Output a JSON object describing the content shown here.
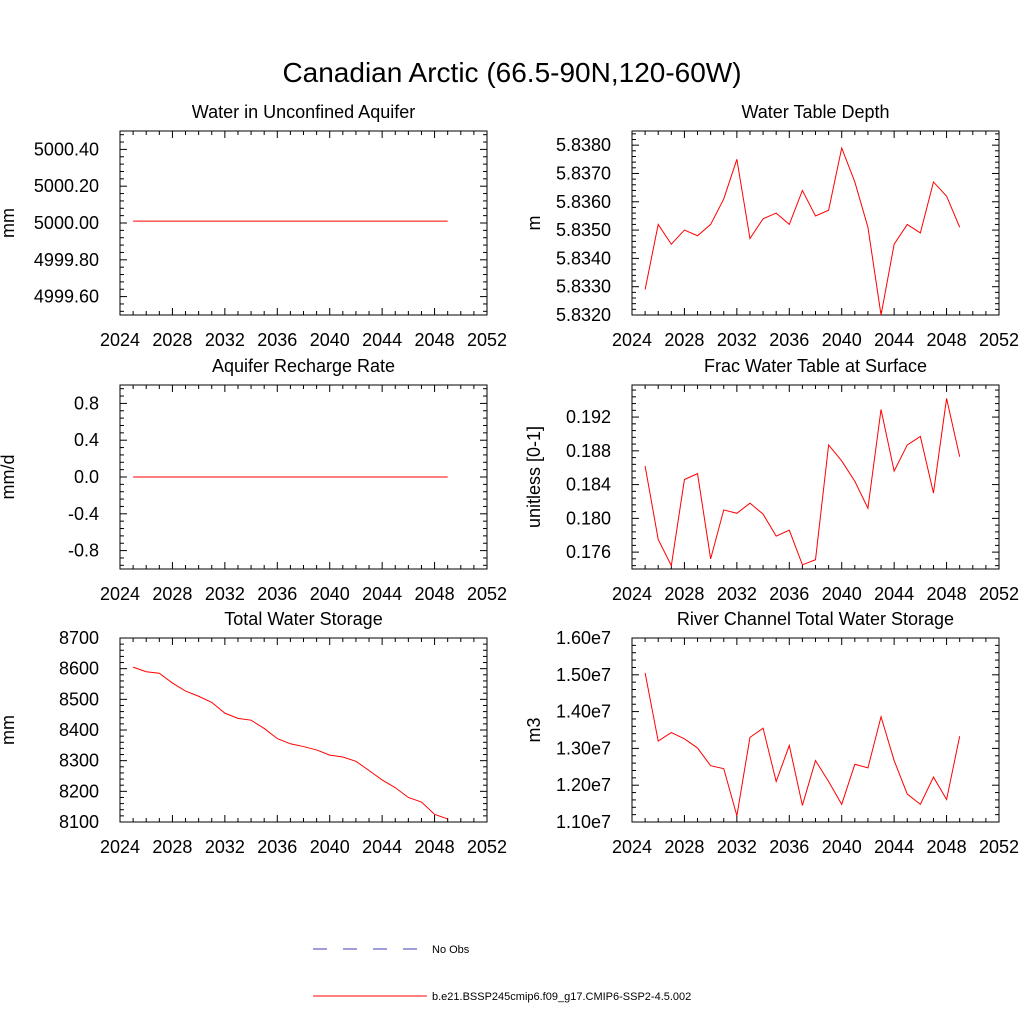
{
  "figure": {
    "title": "Canadian Arctic (66.5-90N,120-60W)"
  },
  "legend": {
    "obs_label": "No Obs",
    "obs_color": "#3d3db5",
    "model_label": "b.e21.BSSP245cmip6.f09_g17.CMIP6-SSP2-4.5.002",
    "model_color": "#ff0000"
  },
  "chart_data": [
    {
      "type": "line",
      "title": "Water in Unconfined Aquifer",
      "ylabel": "mm",
      "xlim": [
        2024,
        2052
      ],
      "ylim": [
        4999.5,
        5000.5
      ],
      "x_ticks": [
        "2024",
        "2028",
        "2032",
        "2036",
        "2040",
        "2044",
        "2048",
        "2052"
      ],
      "y_ticks": [
        {
          "value": 4999.6,
          "label": "4999.60"
        },
        {
          "value": 4999.8,
          "label": "4999.80"
        },
        {
          "value": 5000.0,
          "label": "5000.00"
        },
        {
          "value": 5000.2,
          "label": "5000.20"
        },
        {
          "value": 5000.4,
          "label": "5000.40"
        }
      ],
      "x": [
        2025,
        2026,
        2027,
        2028,
        2029,
        2030,
        2031,
        2032,
        2033,
        2034,
        2035,
        2036,
        2037,
        2038,
        2039,
        2040,
        2041,
        2042,
        2043,
        2044,
        2045,
        2046,
        2047,
        2048,
        2049
      ],
      "series": [
        {
          "color": "#ff0000",
          "values": [
            5000.01,
            5000.01,
            5000.01,
            5000.01,
            5000.01,
            5000.01,
            5000.01,
            5000.01,
            5000.01,
            5000.01,
            5000.01,
            5000.01,
            5000.01,
            5000.01,
            5000.01,
            5000.01,
            5000.01,
            5000.01,
            5000.01,
            5000.01,
            5000.01,
            5000.01,
            5000.01,
            5000.01,
            5000.01
          ]
        }
      ]
    },
    {
      "type": "line",
      "title": "Water Table Depth",
      "ylabel": "m",
      "xlim": [
        2024,
        2052
      ],
      "ylim": [
        5.832,
        5.8385
      ],
      "x_ticks": [
        "2024",
        "2028",
        "2032",
        "2036",
        "2040",
        "2044",
        "2048",
        "2052"
      ],
      "y_ticks": [
        {
          "value": 5.832,
          "label": "5.8320"
        },
        {
          "value": 5.833,
          "label": "5.8330"
        },
        {
          "value": 5.834,
          "label": "5.8340"
        },
        {
          "value": 5.835,
          "label": "5.8350"
        },
        {
          "value": 5.836,
          "label": "5.8360"
        },
        {
          "value": 5.837,
          "label": "5.8370"
        },
        {
          "value": 5.838,
          "label": "5.8380"
        }
      ],
      "x": [
        2025,
        2026,
        2027,
        2028,
        2029,
        2030,
        2031,
        2032,
        2033,
        2034,
        2035,
        2036,
        2037,
        2038,
        2039,
        2040,
        2041,
        2042,
        2043,
        2044,
        2045,
        2046,
        2047,
        2048,
        2049
      ],
      "series": [
        {
          "color": "#ff0000",
          "values": [
            5.8329,
            5.8352,
            5.8345,
            5.835,
            5.8348,
            5.8352,
            5.8361,
            5.8375,
            5.8347,
            5.8354,
            5.8356,
            5.8352,
            5.8364,
            5.8355,
            5.8357,
            5.8379,
            5.8367,
            5.8351,
            5.832,
            5.8345,
            5.8352,
            5.8349,
            5.8367,
            5.8362,
            5.8351
          ]
        }
      ]
    },
    {
      "type": "line",
      "title": "Aquifer Recharge Rate",
      "ylabel": "mm/d",
      "xlim": [
        2024,
        2052
      ],
      "ylim": [
        -1.0,
        1.0
      ],
      "x_ticks": [
        "2024",
        "2028",
        "2032",
        "2036",
        "2040",
        "2044",
        "2048",
        "2052"
      ],
      "y_ticks": [
        {
          "value": -0.8,
          "label": "-0.8"
        },
        {
          "value": -0.4,
          "label": "-0.4"
        },
        {
          "value": 0.0,
          "label": "0.0"
        },
        {
          "value": 0.4,
          "label": "0.4"
        },
        {
          "value": 0.8,
          "label": "0.8"
        }
      ],
      "x": [
        2025,
        2026,
        2027,
        2028,
        2029,
        2030,
        2031,
        2032,
        2033,
        2034,
        2035,
        2036,
        2037,
        2038,
        2039,
        2040,
        2041,
        2042,
        2043,
        2044,
        2045,
        2046,
        2047,
        2048,
        2049
      ],
      "series": [
        {
          "color": "#ff0000",
          "values": [
            0,
            0,
            0,
            0,
            0,
            0,
            0,
            0,
            0,
            0,
            0,
            0,
            0,
            0,
            0,
            0,
            0,
            0,
            0,
            0,
            0,
            0,
            0,
            0,
            0
          ]
        }
      ]
    },
    {
      "type": "line",
      "title": "Frac Water Table at Surface",
      "ylabel": "unitless [0-1]",
      "xlim": [
        2024,
        2052
      ],
      "ylim": [
        0.174,
        0.1958
      ],
      "x_ticks": [
        "2024",
        "2028",
        "2032",
        "2036",
        "2040",
        "2044",
        "2048",
        "2052"
      ],
      "y_ticks": [
        {
          "value": 0.176,
          "label": "0.176"
        },
        {
          "value": 0.18,
          "label": "0.180"
        },
        {
          "value": 0.184,
          "label": "0.184"
        },
        {
          "value": 0.188,
          "label": "0.188"
        },
        {
          "value": 0.192,
          "label": "0.192"
        }
      ],
      "x": [
        2025,
        2026,
        2027,
        2028,
        2029,
        2030,
        2031,
        2032,
        2033,
        2034,
        2035,
        2036,
        2037,
        2038,
        2039,
        2040,
        2041,
        2042,
        2043,
        2044,
        2045,
        2046,
        2047,
        2048,
        2049
      ],
      "series": [
        {
          "color": "#ff0000",
          "values": [
            0.1862,
            0.1775,
            0.1744,
            0.1846,
            0.1853,
            0.1752,
            0.181,
            0.1806,
            0.1818,
            0.1805,
            0.1779,
            0.1786,
            0.1745,
            0.1751,
            0.1887,
            0.1868,
            0.1844,
            0.1812,
            0.1929,
            0.1856,
            0.1887,
            0.1897,
            0.183,
            0.1942,
            0.1873
          ]
        }
      ]
    },
    {
      "type": "line",
      "title": "Total Water Storage",
      "ylabel": "mm",
      "xlim": [
        2024,
        2052
      ],
      "ylim": [
        8100,
        8700
      ],
      "x_ticks": [
        "2024",
        "2028",
        "2032",
        "2036",
        "2040",
        "2044",
        "2048",
        "2052"
      ],
      "y_ticks": [
        {
          "value": 8100,
          "label": "8100"
        },
        {
          "value": 8200,
          "label": "8200"
        },
        {
          "value": 8300,
          "label": "8300"
        },
        {
          "value": 8400,
          "label": "8400"
        },
        {
          "value": 8500,
          "label": "8500"
        },
        {
          "value": 8600,
          "label": "8600"
        },
        {
          "value": 8700,
          "label": "8700"
        }
      ],
      "x": [
        2025,
        2026,
        2027,
        2028,
        2029,
        2030,
        2031,
        2032,
        2033,
        2034,
        2035,
        2036,
        2037,
        2038,
        2039,
        2040,
        2041,
        2042,
        2043,
        2044,
        2045,
        2046,
        2047,
        2048,
        2049
      ],
      "series": [
        {
          "color": "#ff0000",
          "values": [
            8605,
            8590,
            8585,
            8553,
            8527,
            8510,
            8490,
            8455,
            8438,
            8432,
            8405,
            8372,
            8355,
            8346,
            8335,
            8318,
            8312,
            8298,
            8268,
            8237,
            8212,
            8180,
            8165,
            8125,
            8110
          ]
        }
      ]
    },
    {
      "type": "line",
      "title": "River Channel Total Water Storage",
      "ylabel": "m3",
      "xlim": [
        2024,
        2052
      ],
      "ylim": [
        11000000,
        16000000
      ],
      "x_ticks": [
        "2024",
        "2028",
        "2032",
        "2036",
        "2040",
        "2044",
        "2048",
        "2052"
      ],
      "y_ticks": [
        {
          "value": 11000000,
          "label": "1.10e7"
        },
        {
          "value": 12000000,
          "label": "1.20e7"
        },
        {
          "value": 13000000,
          "label": "1.30e7"
        },
        {
          "value": 14000000,
          "label": "1.40e7"
        },
        {
          "value": 15000000,
          "label": "1.50e7"
        },
        {
          "value": 16000000,
          "label": "1.60e7"
        }
      ],
      "x": [
        2025,
        2026,
        2027,
        2028,
        2029,
        2030,
        2031,
        2032,
        2033,
        2034,
        2035,
        2036,
        2037,
        2038,
        2039,
        2040,
        2041,
        2042,
        2043,
        2044,
        2045,
        2046,
        2047,
        2048,
        2049
      ],
      "series": [
        {
          "color": "#ff0000",
          "values": [
            15050000,
            13200000,
            13430000,
            13260000,
            13010000,
            12530000,
            12450000,
            11170000,
            13300000,
            13550000,
            12100000,
            13080000,
            11450000,
            12670000,
            12100000,
            11480000,
            12570000,
            12470000,
            13860000,
            12670000,
            11760000,
            11480000,
            12220000,
            11610000,
            13330000
          ]
        }
      ]
    }
  ]
}
